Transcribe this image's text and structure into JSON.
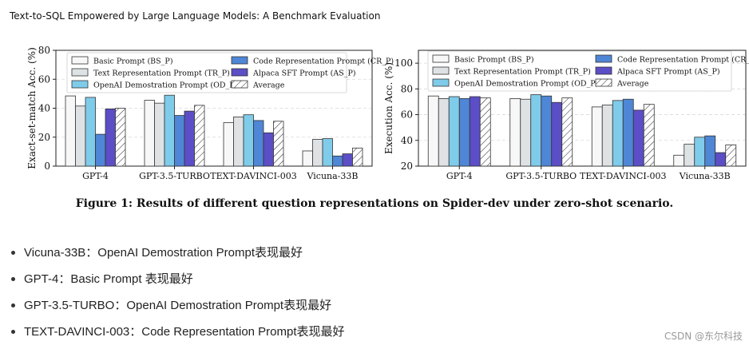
{
  "header": {
    "title": "Text-to-SQL Empowered by Large Language Models: A Benchmark Evaluation"
  },
  "colors": {
    "basic": "#f7f7f7",
    "text_rep": "#dfe2e4",
    "openai": "#7fcbea",
    "code_rep": "#4f86d6",
    "alpaca": "#5c4ec6",
    "average": "#ffffff",
    "edge": "#333333",
    "grid": "#d9d9d9"
  },
  "chart_data": [
    {
      "type": "bar",
      "ylabel": "Exact-set-match Acc. (%)",
      "xlabel": "",
      "ylim": [
        0,
        80
      ],
      "yticks": [
        0,
        20,
        40,
        60,
        80
      ],
      "grid": true,
      "legend": "top-left, 2 columns",
      "categories": [
        "GPT-4",
        "GPT-3.5-TURBO",
        "TEXT-DAVINCI-003",
        "Vicuna-33B"
      ],
      "series": [
        {
          "name": "Basic Prompt (BS_P)",
          "color_key": "basic",
          "hatch": false,
          "values": [
            48.5,
            45.5,
            30,
            10.5
          ]
        },
        {
          "name": "Text Representation Prompt (TR_P)",
          "color_key": "text_rep",
          "hatch": false,
          "values": [
            41.5,
            43.5,
            34,
            18.5
          ]
        },
        {
          "name": "OpenAI Demostration Prompt (OD_P)",
          "color_key": "openai",
          "hatch": false,
          "values": [
            47.5,
            49,
            35.5,
            19
          ]
        },
        {
          "name": "Code Representation Prompt (CR_P)",
          "color_key": "code_rep",
          "hatch": false,
          "values": [
            22,
            35,
            31.5,
            7
          ]
        },
        {
          "name": "Alpaca SFT Prompt (AS_P)",
          "color_key": "alpaca",
          "hatch": false,
          "values": [
            39.5,
            38,
            23,
            8.5
          ]
        },
        {
          "name": "Average",
          "color_key": "average",
          "hatch": true,
          "values": [
            40,
            42,
            31,
            12.5
          ]
        }
      ]
    },
    {
      "type": "bar",
      "ylabel": "Execution Acc. (%)",
      "xlabel": "",
      "ylim": [
        20,
        110
      ],
      "yticks": [
        20,
        40,
        60,
        80,
        100
      ],
      "grid": true,
      "legend": "top-left, 2 columns",
      "categories": [
        "GPT-4",
        "GPT-3.5-TURBO",
        "TEXT-DAVINCI-003",
        "Vicuna-33B"
      ],
      "series": [
        {
          "name": "Basic Prompt (BS_P)",
          "color_key": "basic",
          "hatch": false,
          "values": [
            74.5,
            72.5,
            66,
            28.5
          ]
        },
        {
          "name": "Text Representation Prompt (TR_P)",
          "color_key": "text_rep",
          "hatch": false,
          "values": [
            72.5,
            72,
            67.5,
            37
          ]
        },
        {
          "name": "OpenAI Demostration Prompt (OD_P)",
          "color_key": "openai",
          "hatch": false,
          "values": [
            74,
            75.5,
            71,
            42.5
          ]
        },
        {
          "name": "Code Representation Prompt (CR_P)",
          "color_key": "code_rep",
          "hatch": false,
          "values": [
            72.5,
            74.5,
            72,
            43.5
          ]
        },
        {
          "name": "Alpaca SFT Prompt (AS_P)",
          "color_key": "alpaca",
          "hatch": false,
          "values": [
            74,
            69.5,
            63.5,
            30.5
          ]
        },
        {
          "name": "Average",
          "color_key": "average",
          "hatch": true,
          "values": [
            73,
            73,
            68,
            36.5
          ]
        }
      ]
    }
  ],
  "caption": "Figure 1: Results of different question representations on Spider-dev under zero-shot scenario.",
  "notes": [
    "Vicuna-33B：OpenAI Demostration Prompt表现最好",
    "GPT-4：Basic Prompt 表现最好",
    "GPT-3.5-TURBO：OpenAI Demostration Prompt表现最好",
    "TEXT-DAVINCI-003：Code Representation Prompt表现最好"
  ],
  "watermark": "CSDN @东尔科技"
}
